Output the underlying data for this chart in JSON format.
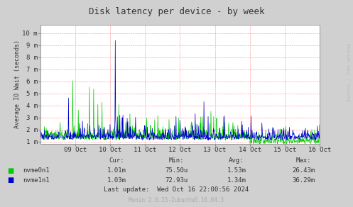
{
  "title": "Disk latency per device - by week",
  "ylabel": "Average IO Wait (seconds)",
  "bg_color": "#d0d0d0",
  "plot_bg_color": "#ffffff",
  "grid_color": "#ff8888",
  "line_color_nvme0": "#00cc00",
  "line_color_nvme1": "#0000cc",
  "ytick_labels": [
    "1 m",
    "2 m",
    "3 m",
    "4 m",
    "5 m",
    "6 m",
    "7 m",
    "8 m",
    "9 m",
    "10 m"
  ],
  "ytick_values": [
    0.001,
    0.002,
    0.003,
    0.004,
    0.005,
    0.006,
    0.007,
    0.008,
    0.009,
    0.01
  ],
  "xtick_labels": [
    "09 Oct",
    "10 Oct",
    "11 Oct",
    "12 Oct",
    "13 Oct",
    "14 Oct",
    "15 Oct",
    "16 Oct"
  ],
  "legend_nvme0": "nvme0n1",
  "legend_nvme1": "nvme1n1",
  "cur_nvme0": "1.01m",
  "cur_nvme1": "1.03m",
  "min_nvme0": "75.50u",
  "min_nvme1": "72.93u",
  "avg_nvme0": "1.53m",
  "avg_nvme1": "1.34m",
  "max_nvme0": "26.43m",
  "max_nvme1": "36.29m",
  "last_update": "Last update:  Wed Oct 16 22:00:56 2024",
  "munin_version": "Munin 2.0.25-2ubuntu0.16.04.3",
  "rrdtool_label": "RRDTOOL / TOBI OETIKER",
  "ymin": 0.0008,
  "ymax": 0.0107,
  "num_points": 800
}
